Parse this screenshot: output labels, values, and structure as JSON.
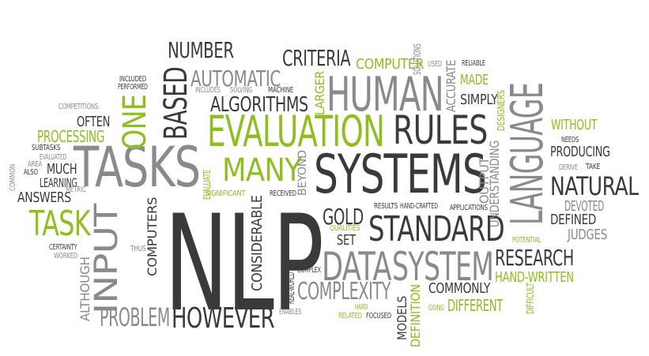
{
  "colors": {
    "dark": "#3a3a3a",
    "gray": "#8a8a8a",
    "light": "#a9a9a9",
    "green": "#8cbf1f"
  },
  "words": [
    {
      "id": "nlp",
      "text": "NLP",
      "tone": "dark"
    },
    {
      "id": "tasks",
      "text": "TASKS",
      "tone": "gray"
    },
    {
      "id": "evaluation",
      "text": "EVALUATION",
      "tone": "green"
    },
    {
      "id": "systems",
      "text": "SYSTEMS",
      "tone": "dark"
    },
    {
      "id": "human",
      "text": "HUMAN",
      "tone": "gray"
    },
    {
      "id": "rules",
      "text": "RULES",
      "tone": "dark"
    },
    {
      "id": "language",
      "text": "LANGUAGE",
      "tone": "gray"
    },
    {
      "id": "input",
      "text": "INPUT",
      "tone": "gray"
    },
    {
      "id": "task",
      "text": "TASK",
      "tone": "green"
    },
    {
      "id": "based",
      "text": "BASED",
      "tone": "dark"
    },
    {
      "id": "one",
      "text": "ONE",
      "tone": "green"
    },
    {
      "id": "many",
      "text": "MANY",
      "tone": "green"
    },
    {
      "id": "standard",
      "text": "STANDARD",
      "tone": "dark"
    },
    {
      "id": "data",
      "text": "DATA",
      "tone": "gray"
    },
    {
      "id": "system",
      "text": "SYSTEM",
      "tone": "gray"
    },
    {
      "id": "natural",
      "text": "NATURAL",
      "tone": "dark"
    },
    {
      "id": "however",
      "text": "HOWEVER",
      "tone": "dark"
    },
    {
      "id": "problem",
      "text": "PROBLEM",
      "tone": "gray"
    },
    {
      "id": "complexity",
      "text": "COMPLEXITY",
      "tone": "gray"
    },
    {
      "id": "research",
      "text": "RESEARCH",
      "tone": "dark"
    },
    {
      "id": "algorithms",
      "text": "ALGORITHMS",
      "tone": "dark"
    },
    {
      "id": "automatic",
      "text": "AUTOMATIC",
      "tone": "gray"
    },
    {
      "id": "number",
      "text": "NUMBER",
      "tone": "dark"
    },
    {
      "id": "criteria",
      "text": "CRITERIA",
      "tone": "dark"
    },
    {
      "id": "processing",
      "text": "PROCESSING",
      "tone": "green"
    },
    {
      "id": "often",
      "text": "OFTEN",
      "tone": "dark"
    },
    {
      "id": "much",
      "text": "MUCH",
      "tone": "dark"
    },
    {
      "id": "learning",
      "text": "LEARNING",
      "tone": "dark"
    },
    {
      "id": "answers",
      "text": "ANSWERS",
      "tone": "dark"
    },
    {
      "id": "computers",
      "text": "COMPUTERS",
      "tone": "dark"
    },
    {
      "id": "considerable",
      "text": "CONSIDERABLE",
      "tone": "dark"
    },
    {
      "id": "beyond",
      "text": "BEYOND",
      "tone": "gray"
    },
    {
      "id": "gold",
      "text": "GOLD",
      "tone": "dark"
    },
    {
      "id": "set",
      "text": "SET",
      "tone": "dark"
    },
    {
      "id": "commonly",
      "text": "COMMONLY",
      "tone": "dark"
    },
    {
      "id": "different",
      "text": "DIFFERENT",
      "tone": "green"
    },
    {
      "id": "hand_written",
      "text": "HAND-WRITTEN",
      "tone": "green"
    },
    {
      "id": "models",
      "text": "MODELS",
      "tone": "dark"
    },
    {
      "id": "definition",
      "text": "DEFINITION",
      "tone": "green"
    },
    {
      "id": "although",
      "text": "ALTHOUGH",
      "tone": "gray"
    },
    {
      "id": "without",
      "text": "WITHOUT",
      "tone": "green"
    },
    {
      "id": "producing",
      "text": "PRODUCING",
      "tone": "dark"
    },
    {
      "id": "devoted",
      "text": "DEVOTED",
      "tone": "gray"
    },
    {
      "id": "defined",
      "text": "DEFINED",
      "tone": "dark"
    },
    {
      "id": "judges",
      "text": "JUDGES",
      "tone": "gray"
    },
    {
      "id": "understanding",
      "text": "UNDERSTANDING",
      "tone": "gray"
    },
    {
      "id": "output",
      "text": "OUTPUT",
      "tone": "gray"
    },
    {
      "id": "accurate",
      "text": "ACCURATE",
      "tone": "gray"
    },
    {
      "id": "simply",
      "text": "SIMPLY",
      "tone": "dark"
    },
    {
      "id": "made",
      "text": "MADE",
      "tone": "green"
    },
    {
      "id": "computer",
      "text": "COMPUTER",
      "tone": "green"
    },
    {
      "id": "larger",
      "text": "LARGER",
      "tone": "green"
    },
    {
      "id": "used",
      "text": "USED",
      "tone": "gray"
    },
    {
      "id": "reliable",
      "text": "RELIABLE",
      "tone": "dark"
    },
    {
      "id": "solutions",
      "text": "SOLUTIONS",
      "tone": "gray"
    },
    {
      "id": "designers",
      "text": "DESIGNERS",
      "tone": "green"
    },
    {
      "id": "included",
      "text": "INCLUDED",
      "tone": "dark"
    },
    {
      "id": "performed",
      "text": "PERFORMED",
      "tone": "dark"
    },
    {
      "id": "includes",
      "text": "INCLUDES",
      "tone": "gray"
    },
    {
      "id": "solving",
      "text": "SOLVING",
      "tone": "gray"
    },
    {
      "id": "machine",
      "text": "MACHINE",
      "tone": "dark"
    },
    {
      "id": "competitions",
      "text": "COMPETITIONS",
      "tone": "gray"
    },
    {
      "id": "subtasks",
      "text": "SUBTASKS",
      "tone": "dark"
    },
    {
      "id": "evaluated",
      "text": "EVALUATED",
      "tone": "gray"
    },
    {
      "id": "area",
      "text": "AREA",
      "tone": "gray"
    },
    {
      "id": "also",
      "text": "ALSO",
      "tone": "dark"
    },
    {
      "id": "common",
      "text": "COMMON",
      "tone": "gray"
    },
    {
      "id": "metric",
      "text": "METRIC",
      "tone": "gray"
    },
    {
      "id": "certainty",
      "text": "CERTAINTY",
      "tone": "dark"
    },
    {
      "id": "worked",
      "text": "WORKED",
      "tone": "gray"
    },
    {
      "id": "thus",
      "text": "THUS",
      "tone": "gray"
    },
    {
      "id": "evaluate",
      "text": "EVALUATE",
      "tone": "green"
    },
    {
      "id": "significant",
      "text": "SIGNIFICANT",
      "tone": "green"
    },
    {
      "id": "received",
      "text": "RECEIVED",
      "tone": "dark"
    },
    {
      "id": "qualities",
      "text": "QUALITIES",
      "tone": "green"
    },
    {
      "id": "results",
      "text": "RESULTS",
      "tone": "dark"
    },
    {
      "id": "hand_crafted",
      "text": "HAND-CRAFTED",
      "tone": "dark"
    },
    {
      "id": "applications",
      "text": "APPLICATIONS",
      "tone": "dark"
    },
    {
      "id": "potential",
      "text": "POTENTIAL",
      "tone": "green"
    },
    {
      "id": "needs",
      "text": "NEEDS",
      "tone": "dark"
    },
    {
      "id": "derive",
      "text": "DERIVE",
      "tone": "gray"
    },
    {
      "id": "take",
      "text": "TAKE",
      "tone": "dark"
    },
    {
      "id": "complex",
      "text": "COMPLEX",
      "tone": "dark"
    },
    {
      "id": "real_world",
      "text": "REAL-WORLD",
      "tone": "dark"
    },
    {
      "id": "enables",
      "text": "ENABLES",
      "tone": "gray"
    },
    {
      "id": "hard",
      "text": "HARD",
      "tone": "green"
    },
    {
      "id": "related",
      "text": "RELATED",
      "tone": "green"
    },
    {
      "id": "focused",
      "text": "FOCUSED",
      "tone": "dark"
    },
    {
      "id": "going",
      "text": "GOING",
      "tone": "green"
    },
    {
      "id": "difficult",
      "text": "DIFFICULT",
      "tone": "green"
    }
  ]
}
